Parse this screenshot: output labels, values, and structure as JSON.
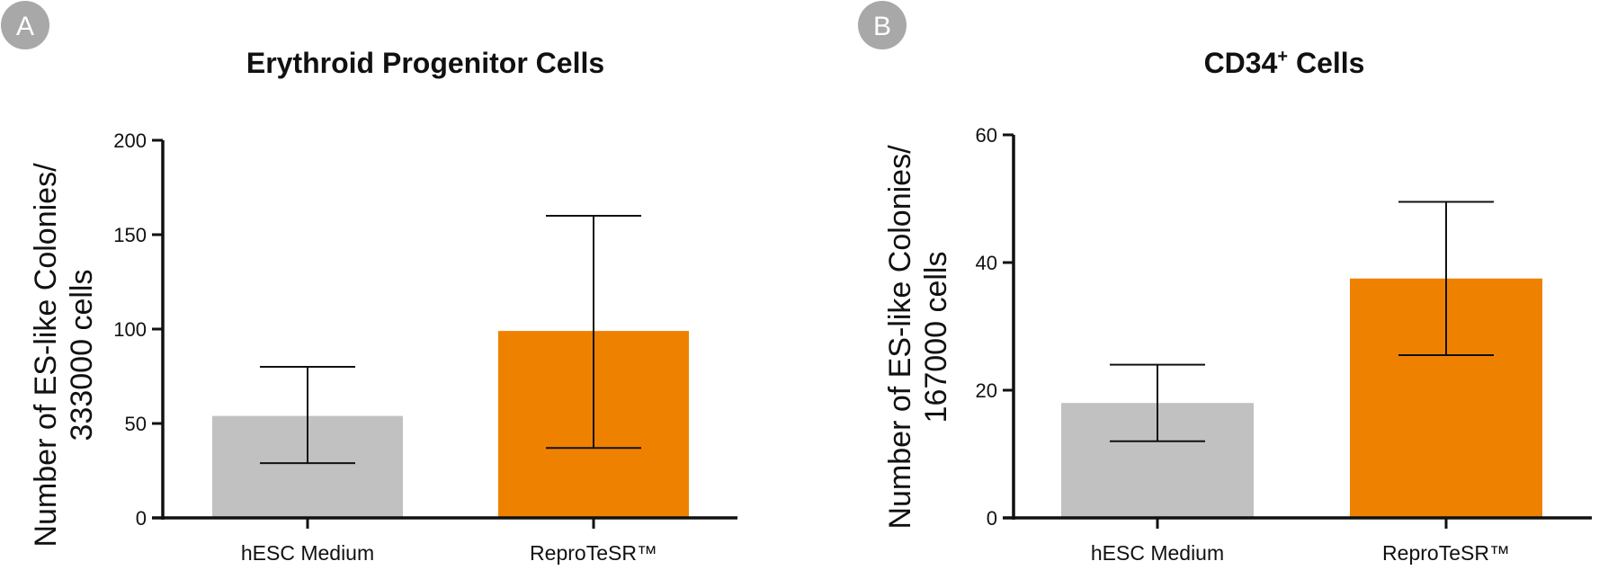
{
  "panel_a_badge": "A",
  "panel_b_badge": "B",
  "chart_data": [
    {
      "type": "bar",
      "title": "Erythroid Progenitor Cells",
      "ylabel_line1": "Number of ES-like Colonies/",
      "ylabel_line2": "333000 cells",
      "categories": [
        "hESC Medium",
        "ReproTeSR™"
      ],
      "values": [
        54,
        99
      ],
      "error_low": [
        29,
        37
      ],
      "error_high": [
        80,
        160
      ],
      "ylim": [
        0,
        200
      ],
      "yticks": [
        "0",
        "50",
        "100",
        "150",
        "200"
      ],
      "colors": [
        "#c1c1c1",
        "#ee8200"
      ]
    },
    {
      "type": "bar",
      "title": "CD34",
      "title_superscript": "+",
      "title_suffix": " Cells",
      "ylabel_line1": "Number of ES-like Colonies/",
      "ylabel_line2": "167000 cells",
      "categories": [
        "hESC Medium",
        "ReproTeSR™"
      ],
      "values": [
        18,
        37.5
      ],
      "error_low": [
        12,
        25.5
      ],
      "error_high": [
        24,
        49.5
      ],
      "ylim": [
        0,
        60
      ],
      "yticks": [
        "0",
        "20",
        "40",
        "60"
      ],
      "colors": [
        "#c1c1c1",
        "#ee8200"
      ]
    }
  ]
}
